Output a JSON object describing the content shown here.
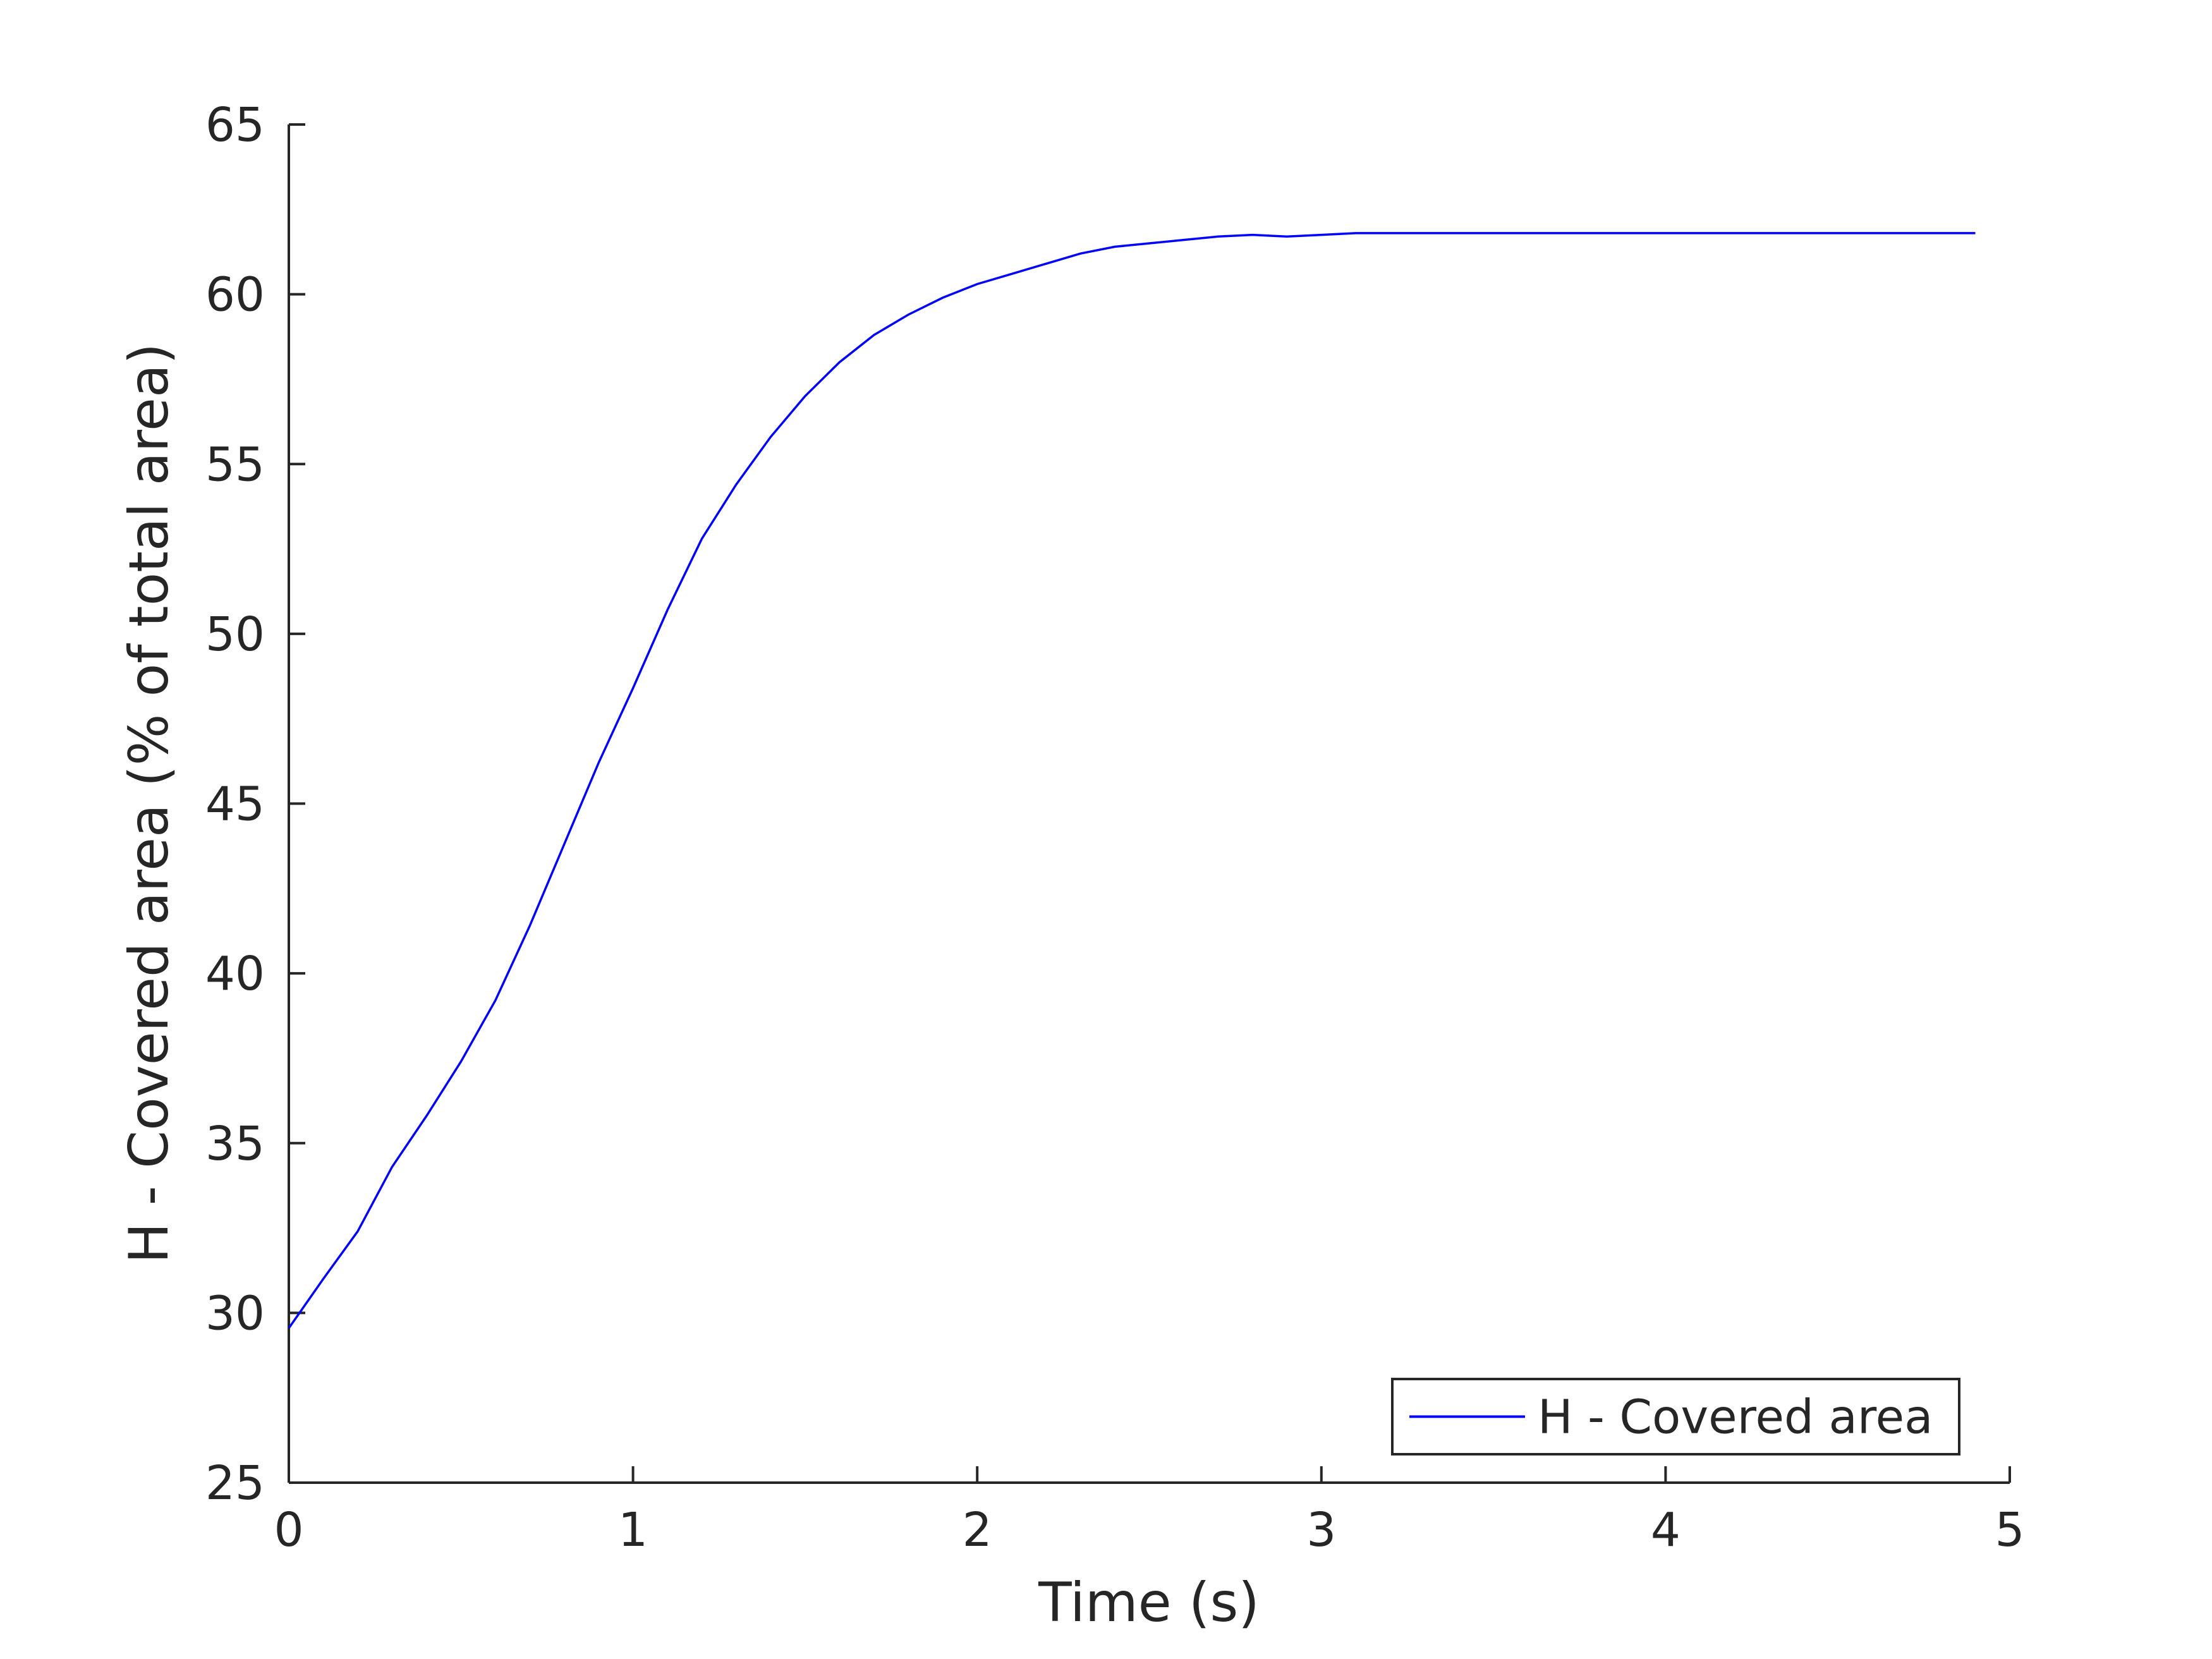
{
  "chart_data": {
    "type": "line",
    "xlabel": "Time (s)",
    "ylabel": "H - Covered area (% of total area)",
    "x": [
      0,
      0.1,
      0.2,
      0.3,
      0.4,
      0.5,
      0.6,
      0.7,
      0.8,
      0.9,
      1,
      1.1,
      1.2,
      1.3,
      1.4,
      1.5,
      1.6,
      1.7,
      1.8,
      1.9,
      2,
      2.1,
      2.2,
      2.3,
      2.4,
      2.5,
      2.6,
      2.7,
      2.8,
      2.9,
      3,
      3.1,
      3.2,
      3.3,
      3.4,
      3.5,
      3.6,
      3.7,
      3.8,
      3.9,
      4,
      4.1,
      4.2,
      4.3,
      4.4,
      4.5,
      4.6,
      4.7,
      4.8,
      4.9
    ],
    "series": [
      {
        "name": "H - Covered area",
        "color": "#0000ff",
        "values": [
          29.55,
          31.0,
          32.4,
          34.3,
          35.8,
          37.4,
          39.2,
          41.4,
          43.8,
          46.2,
          48.4,
          50.7,
          52.8,
          54.4,
          55.8,
          57.0,
          58.0,
          58.8,
          59.4,
          59.9,
          60.3,
          60.6,
          60.9,
          61.2,
          61.4,
          61.5,
          61.6,
          61.7,
          61.75,
          61.7,
          61.75,
          61.8,
          61.8,
          61.8,
          61.8,
          61.8,
          61.8,
          61.8,
          61.8,
          61.8,
          61.8,
          61.8,
          61.8,
          61.8,
          61.8,
          61.8,
          61.8,
          61.8,
          61.8,
          61.8
        ]
      }
    ],
    "xlim": [
      0,
      5
    ],
    "xticks": [
      0,
      1,
      2,
      3,
      4,
      5
    ],
    "ylim": [
      25,
      65
    ],
    "yticks": [
      25,
      30,
      35,
      40,
      45,
      50,
      55,
      60,
      65
    ],
    "legend": "lower right"
  }
}
